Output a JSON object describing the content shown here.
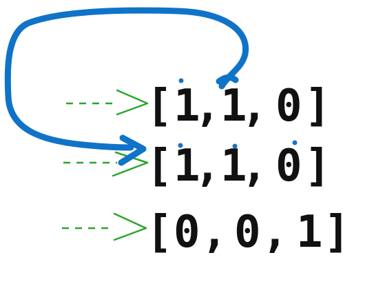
{
  "rows": [
    {
      "open": "[",
      "close": "]",
      "cells": [
        "1",
        ",",
        "1",
        ",",
        "0"
      ],
      "dotted_cells": [
        0
      ]
    },
    {
      "open": "[",
      "close": "]",
      "cells": [
        "1",
        ",",
        "1",
        ",",
        "0"
      ],
      "dotted_cells": [
        0,
        2,
        4
      ]
    },
    {
      "open": "[",
      "close": "]",
      "cells": [
        "0",
        ",",
        "0",
        ",",
        "1"
      ],
      "dotted_cells": []
    }
  ],
  "colors": {
    "text": "#111111",
    "dots": "#1a72c9",
    "arc": "#0f73c8",
    "row_arrows": "#2aa52a"
  },
  "connectors": {
    "row_pointer_style": "dashed-arrow",
    "arc_from": "row-1-top",
    "arc_to": "row-2-left"
  }
}
